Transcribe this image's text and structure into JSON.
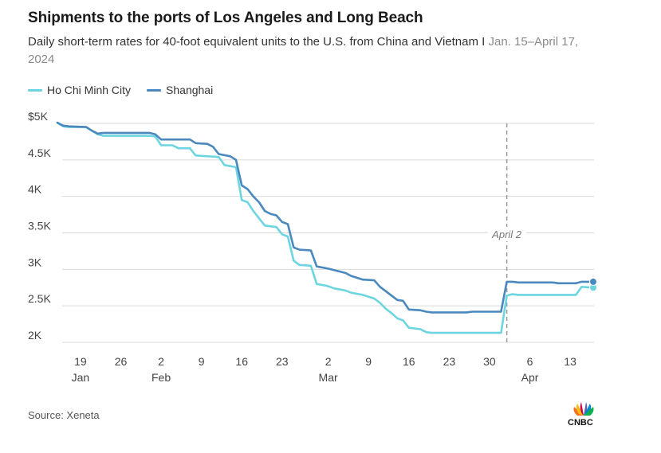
{
  "title": "Shipments to the ports of Los Angeles and Long Beach",
  "subtitle_main": "Daily short-term rates for 40-foot equivalent units to the U.S. from China and Vietnam I ",
  "subtitle_muted": "Jan. 15–April 17, 2024",
  "source": "Source: Xeneta",
  "logo_text": "CNBC",
  "colors": {
    "hcmc": "#6dd5e0",
    "shanghai": "#4a88bd",
    "grid": "#d9d9d9",
    "annotation": "#999999"
  },
  "chart_data": {
    "type": "line",
    "ylim": [
      2000,
      5000
    ],
    "y_ticks": [
      2000,
      2500,
      3000,
      3500,
      4000,
      4500,
      5000
    ],
    "y_tick_labels": [
      "2K",
      "2.5K",
      "3K",
      "3.5K",
      "4K",
      "4.5K",
      "$5K"
    ],
    "x_range": [
      "2024-01-15",
      "2024-04-17"
    ],
    "x_ticks": [
      {
        "date": "2024-01-19",
        "label": "19",
        "month": "Jan"
      },
      {
        "date": "2024-01-26",
        "label": "26",
        "month": ""
      },
      {
        "date": "2024-02-02",
        "label": "2",
        "month": "Feb"
      },
      {
        "date": "2024-02-09",
        "label": "9",
        "month": ""
      },
      {
        "date": "2024-02-16",
        "label": "16",
        "month": ""
      },
      {
        "date": "2024-02-23",
        "label": "23",
        "month": ""
      },
      {
        "date": "2024-03-02",
        "label": "2",
        "month": "Mar"
      },
      {
        "date": "2024-03-09",
        "label": "9",
        "month": ""
      },
      {
        "date": "2024-03-16",
        "label": "16",
        "month": ""
      },
      {
        "date": "2024-03-23",
        "label": "23",
        "month": ""
      },
      {
        "date": "2024-03-30",
        "label": "30",
        "month": ""
      },
      {
        "date": "2024-04-06",
        "label": "6",
        "month": "Apr"
      },
      {
        "date": "2024-04-13",
        "label": "13",
        "month": ""
      }
    ],
    "annotation": {
      "date": "2024-04-02",
      "label": "April 2"
    },
    "series": [
      {
        "name": "Ho Chi Minh City",
        "points": [
          [
            "2024-01-15",
            5010
          ],
          [
            "2024-01-16",
            4960
          ],
          [
            "2024-01-17",
            4950
          ],
          [
            "2024-01-20",
            4950
          ],
          [
            "2024-01-21",
            4900
          ],
          [
            "2024-01-22",
            4850
          ],
          [
            "2024-01-23",
            4830
          ],
          [
            "2024-01-31",
            4830
          ],
          [
            "2024-02-01",
            4820
          ],
          [
            "2024-02-02",
            4700
          ],
          [
            "2024-02-04",
            4700
          ],
          [
            "2024-02-05",
            4660
          ],
          [
            "2024-02-07",
            4660
          ],
          [
            "2024-02-08",
            4560
          ],
          [
            "2024-02-12",
            4540
          ],
          [
            "2024-02-13",
            4430
          ],
          [
            "2024-02-15",
            4400
          ],
          [
            "2024-02-16",
            3950
          ],
          [
            "2024-02-17",
            3920
          ],
          [
            "2024-02-18",
            3800
          ],
          [
            "2024-02-19",
            3700
          ],
          [
            "2024-02-20",
            3600
          ],
          [
            "2024-02-22",
            3580
          ],
          [
            "2024-02-23",
            3480
          ],
          [
            "2024-02-24",
            3450
          ],
          [
            "2024-02-25",
            3120
          ],
          [
            "2024-02-26",
            3060
          ],
          [
            "2024-02-28",
            3050
          ],
          [
            "2024-02-29",
            2800
          ],
          [
            "2024-03-02",
            2770
          ],
          [
            "2024-03-03",
            2740
          ],
          [
            "2024-03-05",
            2710
          ],
          [
            "2024-03-06",
            2680
          ],
          [
            "2024-03-08",
            2650
          ],
          [
            "2024-03-10",
            2600
          ],
          [
            "2024-03-11",
            2540
          ],
          [
            "2024-03-12",
            2460
          ],
          [
            "2024-03-13",
            2400
          ],
          [
            "2024-03-14",
            2330
          ],
          [
            "2024-03-15",
            2300
          ],
          [
            "2024-03-16",
            2200
          ],
          [
            "2024-03-18",
            2180
          ],
          [
            "2024-03-19",
            2140
          ],
          [
            "2024-03-20",
            2130
          ],
          [
            "2024-04-01",
            2130
          ],
          [
            "2024-04-02",
            2640
          ],
          [
            "2024-04-03",
            2660
          ],
          [
            "2024-04-04",
            2650
          ],
          [
            "2024-04-14",
            2650
          ],
          [
            "2024-04-15",
            2760
          ],
          [
            "2024-04-17",
            2750
          ]
        ]
      },
      {
        "name": "Shanghai",
        "points": [
          [
            "2024-01-15",
            5010
          ],
          [
            "2024-01-16",
            4970
          ],
          [
            "2024-01-17",
            4960
          ],
          [
            "2024-01-20",
            4950
          ],
          [
            "2024-01-21",
            4900
          ],
          [
            "2024-01-22",
            4860
          ],
          [
            "2024-01-23",
            4870
          ],
          [
            "2024-01-31",
            4870
          ],
          [
            "2024-02-01",
            4850
          ],
          [
            "2024-02-02",
            4780
          ],
          [
            "2024-02-07",
            4780
          ],
          [
            "2024-02-08",
            4730
          ],
          [
            "2024-02-10",
            4720
          ],
          [
            "2024-02-11",
            4680
          ],
          [
            "2024-02-12",
            4580
          ],
          [
            "2024-02-14",
            4550
          ],
          [
            "2024-02-15",
            4500
          ],
          [
            "2024-02-16",
            4150
          ],
          [
            "2024-02-17",
            4100
          ],
          [
            "2024-02-18",
            4000
          ],
          [
            "2024-02-19",
            3920
          ],
          [
            "2024-02-20",
            3800
          ],
          [
            "2024-02-21",
            3760
          ],
          [
            "2024-02-22",
            3740
          ],
          [
            "2024-02-23",
            3650
          ],
          [
            "2024-02-24",
            3620
          ],
          [
            "2024-02-25",
            3300
          ],
          [
            "2024-02-26",
            3270
          ],
          [
            "2024-02-28",
            3260
          ],
          [
            "2024-02-29",
            3040
          ],
          [
            "2024-03-02",
            3010
          ],
          [
            "2024-03-03",
            2990
          ],
          [
            "2024-03-05",
            2950
          ],
          [
            "2024-03-06",
            2910
          ],
          [
            "2024-03-08",
            2860
          ],
          [
            "2024-03-10",
            2850
          ],
          [
            "2024-03-11",
            2760
          ],
          [
            "2024-03-12",
            2700
          ],
          [
            "2024-03-13",
            2640
          ],
          [
            "2024-03-14",
            2580
          ],
          [
            "2024-03-15",
            2570
          ],
          [
            "2024-03-16",
            2450
          ],
          [
            "2024-03-18",
            2440
          ],
          [
            "2024-03-19",
            2420
          ],
          [
            "2024-03-20",
            2410
          ],
          [
            "2024-03-26",
            2410
          ],
          [
            "2024-03-27",
            2420
          ],
          [
            "2024-04-01",
            2420
          ],
          [
            "2024-04-02",
            2830
          ],
          [
            "2024-04-03",
            2830
          ],
          [
            "2024-04-04",
            2820
          ],
          [
            "2024-04-10",
            2820
          ],
          [
            "2024-04-11",
            2810
          ],
          [
            "2024-04-14",
            2810
          ],
          [
            "2024-04-15",
            2830
          ],
          [
            "2024-04-17",
            2830
          ]
        ]
      }
    ]
  }
}
